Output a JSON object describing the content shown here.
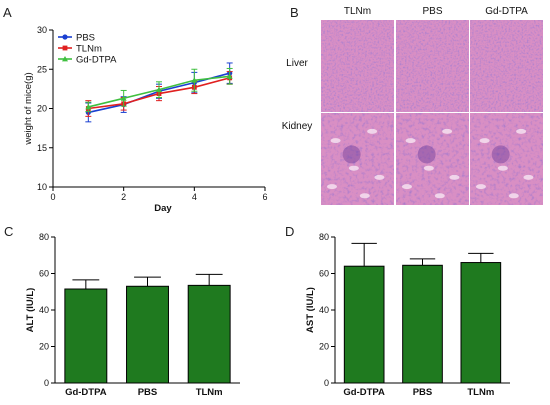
{
  "panels": {
    "a": "A",
    "b": "B",
    "c": "C",
    "d": "D"
  },
  "colors": {
    "PBS": "#1a3fd1",
    "TLNm": "#e02020",
    "Gd-DTPA": "#3fbf3f",
    "bar_fill": "#1f7a1f",
    "tissue": "#d98fc4",
    "tissue_nuclei": "#6a3a9a"
  },
  "histology": {
    "columns": [
      "TLNm",
      "PBS",
      "Gd-DTPA"
    ],
    "rows": [
      "Liver",
      "Kidney"
    ]
  },
  "chart_data": [
    {
      "type": "line",
      "panel": "A",
      "xlabel": "Day",
      "ylabel": "weight of mice(g)",
      "xlim": [
        0,
        6
      ],
      "ylim": [
        10,
        30
      ],
      "xticks": [
        0,
        2,
        4,
        6
      ],
      "yticks": [
        10,
        15,
        20,
        25,
        30
      ],
      "legend_position": "top-left",
      "x": [
        1,
        2,
        3,
        4,
        5
      ],
      "series": [
        {
          "name": "PBS",
          "values": [
            19.5,
            20.5,
            22.2,
            23.3,
            24.5
          ],
          "errors": [
            1.2,
            1.0,
            0.9,
            1.3,
            1.3
          ]
        },
        {
          "name": "TLNm",
          "values": [
            20.0,
            20.6,
            21.9,
            22.7,
            23.9
          ],
          "errors": [
            1.0,
            0.8,
            0.9,
            0.8,
            0.8
          ]
        },
        {
          "name": "Gd-DTPA",
          "values": [
            20.2,
            21.3,
            22.4,
            23.6,
            24.1
          ],
          "errors": [
            0.6,
            1.0,
            1.0,
            1.4,
            1.0
          ]
        }
      ]
    },
    {
      "type": "bar",
      "panel": "C",
      "ylabel": "ALT (IU/L)",
      "ylim": [
        0,
        80
      ],
      "yticks": [
        0,
        20,
        40,
        60,
        80
      ],
      "categories": [
        "Gd-DTPA",
        "PBS",
        "TLNm"
      ],
      "values": [
        51.5,
        53,
        53.5
      ],
      "errors": [
        5,
        5,
        6
      ]
    },
    {
      "type": "bar",
      "panel": "D",
      "ylabel": "AST (IU/L)",
      "ylim": [
        0,
        80
      ],
      "yticks": [
        0,
        20,
        40,
        60,
        80
      ],
      "categories": [
        "Gd-DTPA",
        "PBS",
        "TLNm"
      ],
      "values": [
        64,
        64.5,
        66
      ],
      "errors": [
        12.5,
        3.5,
        5
      ]
    }
  ]
}
